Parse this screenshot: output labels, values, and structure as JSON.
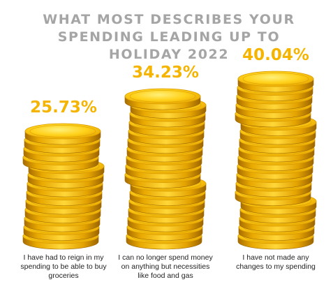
{
  "chart_data": {
    "type": "bar",
    "title_lines": [
      "WHAT MOST DESCRIBES YOUR",
      "SPENDING LEADING UP TO",
      "HOLIDAY 2022"
    ],
    "categories": [
      [
        "I have had to reign in my",
        "spending to be able to buy",
        "groceries"
      ],
      [
        "I can no longer spend money",
        "on anything but necessities",
        "like food and gas"
      ],
      [
        "I have not made any",
        "changes to my spending"
      ]
    ],
    "values": [
      25.73,
      34.23,
      40.04
    ],
    "value_labels": [
      "25.73%",
      "34.23%",
      "40.04%"
    ],
    "unit": "%",
    "xlabel": "",
    "ylabel": "",
    "grid": false,
    "legend": "none",
    "colors": {
      "title": "#a5a5a5",
      "value_label": "#f4b400",
      "coin_face": "#ffd11a",
      "coin_edge": "#d89a00",
      "coin_dark": "#9c6500",
      "text": "#222222"
    }
  }
}
